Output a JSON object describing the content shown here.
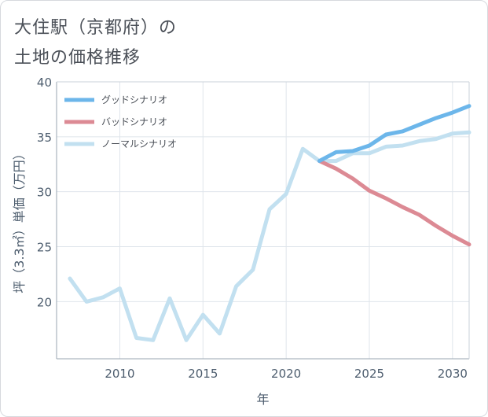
{
  "title_line1": "大住駅（京都府）の",
  "title_line2": "土地の価格推移",
  "chart_data": {
    "type": "line",
    "title": "大住駅（京都府）の 土地の価格推移",
    "xlabel": "年",
    "ylabel": "坪（3.3㎡）単価（万円）",
    "xlim": [
      2006.2,
      2031
    ],
    "ylim": [
      14.8,
      40
    ],
    "x_ticks": [
      2010,
      2015,
      2020,
      2025,
      2030
    ],
    "y_ticks": [
      20,
      25,
      30,
      35,
      40
    ],
    "grid": true,
    "legend_position": "top-left",
    "series": [
      {
        "name": "グッドシナリオ",
        "color": "#6cb6ea",
        "x": [
          2022,
          2023,
          2024,
          2025,
          2026,
          2027,
          2028,
          2029,
          2030,
          2031
        ],
        "values": [
          32.8,
          33.6,
          33.7,
          34.2,
          35.2,
          35.5,
          36.1,
          36.7,
          37.2,
          37.8
        ]
      },
      {
        "name": "バッドシナリオ",
        "color": "#dc8a94",
        "x": [
          2022,
          2023,
          2024,
          2025,
          2026,
          2027,
          2028,
          2029,
          2030,
          2031
        ],
        "values": [
          32.8,
          32.1,
          31.2,
          30.1,
          29.4,
          28.6,
          27.9,
          26.9,
          26.0,
          25.2
        ]
      },
      {
        "name": "ノーマルシナリオ",
        "color": "#c2e0f0",
        "x": [
          2007,
          2008,
          2009,
          2010,
          2011,
          2012,
          2013,
          2014,
          2015,
          2016,
          2017,
          2018,
          2019,
          2020,
          2021,
          2022,
          2023,
          2024,
          2025,
          2026,
          2027,
          2028,
          2029,
          2030,
          2031
        ],
        "values": [
          22.1,
          20.0,
          20.4,
          21.2,
          16.7,
          16.5,
          20.3,
          16.5,
          18.8,
          17.1,
          21.4,
          22.9,
          28.4,
          29.8,
          33.9,
          32.8,
          32.8,
          33.5,
          33.5,
          34.1,
          34.2,
          34.6,
          34.8,
          35.3,
          35.4
        ]
      }
    ]
  }
}
